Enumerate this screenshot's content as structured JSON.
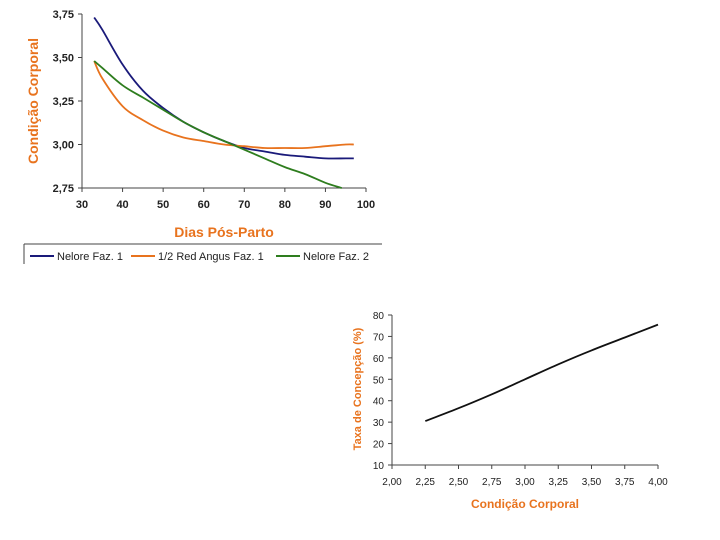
{
  "chart_data": [
    {
      "type": "line",
      "xlabel": "Dias Pós-Parto",
      "ylabel": "Condição Corporal",
      "xlim": [
        30,
        100
      ],
      "ylim": [
        2.75,
        3.75
      ],
      "x_ticks": [
        "30",
        "40",
        "50",
        "60",
        "70",
        "80",
        "90",
        "100"
      ],
      "y_ticks": [
        "2,75",
        "3,00",
        "3,25",
        "3,50",
        "3,75"
      ],
      "legend_position": "bottom",
      "series": [
        {
          "name": "Nelore Faz. 1",
          "color": "#1a1a7a",
          "x": [
            33,
            35,
            40,
            45,
            50,
            55,
            60,
            65,
            70,
            75,
            80,
            85,
            90,
            95,
            97
          ],
          "y": [
            3.73,
            3.66,
            3.46,
            3.31,
            3.21,
            3.13,
            3.07,
            3.02,
            2.98,
            2.96,
            2.94,
            2.93,
            2.92,
            2.92,
            2.92
          ]
        },
        {
          "name": "1/2 Red Angus Faz. 1",
          "color": "#e8731e",
          "x": [
            33,
            35,
            40,
            45,
            50,
            55,
            60,
            65,
            70,
            75,
            80,
            85,
            90,
            95,
            97
          ],
          "y": [
            3.48,
            3.38,
            3.22,
            3.14,
            3.08,
            3.04,
            3.02,
            3.0,
            2.99,
            2.98,
            2.98,
            2.98,
            2.99,
            3.0,
            3.0
          ]
        },
        {
          "name": "Nelore Faz. 2",
          "color": "#2e7d1e",
          "x": [
            33,
            35,
            40,
            45,
            50,
            55,
            60,
            65,
            70,
            75,
            80,
            85,
            90,
            94
          ],
          "y": [
            3.48,
            3.44,
            3.34,
            3.27,
            3.2,
            3.13,
            3.07,
            3.02,
            2.97,
            2.92,
            2.87,
            2.83,
            2.78,
            2.75
          ]
        }
      ]
    },
    {
      "type": "line",
      "xlabel": "Condição Corporal",
      "ylabel": "Taxa de Concepção (%)",
      "xlim": [
        2.0,
        4.0
      ],
      "ylim": [
        10,
        80
      ],
      "x_ticks": [
        "2,00",
        "2,25",
        "2,50",
        "2,75",
        "3,00",
        "3,25",
        "3,50",
        "3,75",
        "4,00"
      ],
      "y_ticks": [
        "10",
        "20",
        "30",
        "40",
        "50",
        "60",
        "70",
        "80"
      ],
      "series": [
        {
          "name": "Taxa de Concepção",
          "color": "#111111",
          "x": [
            2.25,
            2.5,
            2.75,
            3.0,
            3.25,
            3.5,
            3.75,
            4.0
          ],
          "y": [
            30.5,
            36.5,
            43,
            50,
            57,
            63.5,
            69.5,
            75.5
          ]
        }
      ]
    }
  ]
}
